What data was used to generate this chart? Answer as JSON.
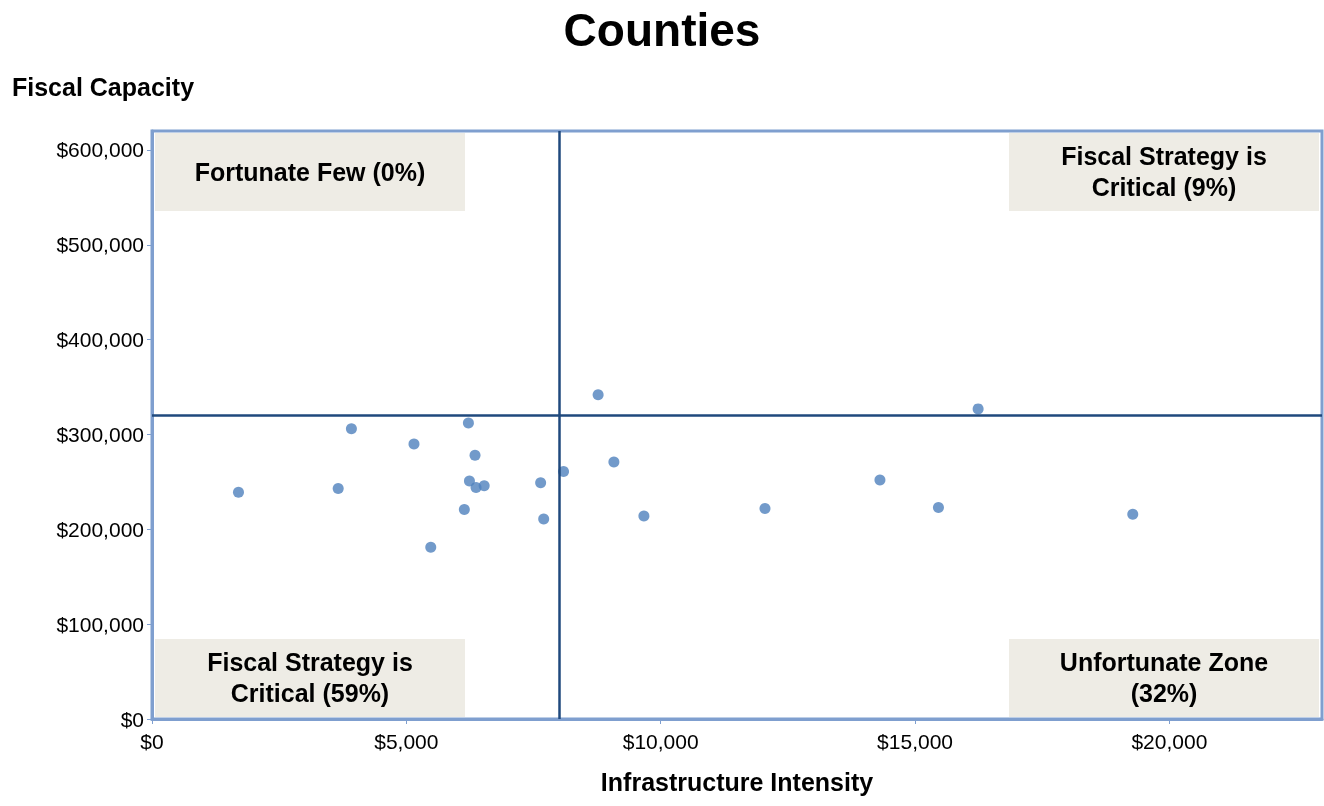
{
  "chart_data": {
    "type": "scatter",
    "title": "Counties",
    "xlabel": "Infrastructure Intensity",
    "ylabel": "Fiscal Capacity",
    "annotations": [
      "Fortunate Few (0%)",
      "Fiscal Strategy is Critical (9%)",
      "Fiscal Strategy is Critical (59%)",
      "Unfortunate Zone (32%)"
    ],
    "series": [
      {
        "color": "#4f81bd",
        "x": [
          1700,
          3660,
          3920,
          5150,
          5480,
          6220,
          6140,
          6240,
          6350,
          6370,
          6530,
          7640,
          7700,
          8090,
          8770,
          9080,
          9670,
          12050,
          14310,
          15460,
          16240,
          19280
        ],
        "values": [
          239000,
          243000,
          306000,
          290000,
          181000,
          312000,
          221000,
          251000,
          278000,
          244000,
          246000,
          249000,
          211000,
          261000,
          342000,
          271000,
          214000,
          222000,
          252000,
          223000,
          327000,
          216000
        ]
      }
    ],
    "marker": "circle",
    "xlim": [
      0,
      23000
    ],
    "xticks": [
      {
        "value": 0,
        "label": "$0"
      },
      {
        "value": 5000,
        "label": "$5,000"
      },
      {
        "value": 10000,
        "label": "$10,000"
      },
      {
        "value": 15000,
        "label": "$15,000"
      },
      {
        "value": 20000,
        "label": "$20,000"
      }
    ],
    "ylim": [
      0,
      620000
    ],
    "yticks": [
      {
        "value": 0,
        "label": "$0"
      },
      {
        "value": 100000,
        "label": "$100,000"
      },
      {
        "value": 200000,
        "label": "$200,000"
      },
      {
        "value": 300000,
        "label": "$300,000"
      },
      {
        "value": 400000,
        "label": "$400,000"
      },
      {
        "value": 500000,
        "label": "$500,000"
      },
      {
        "value": 600000,
        "label": "$600,000"
      }
    ],
    "ref_lines": [
      {
        "axis": "x",
        "value": 8000,
        "color": "#1f497d"
      },
      {
        "axis": "y",
        "value": 320000,
        "color": "#1f497d"
      }
    ],
    "grid": false
  }
}
